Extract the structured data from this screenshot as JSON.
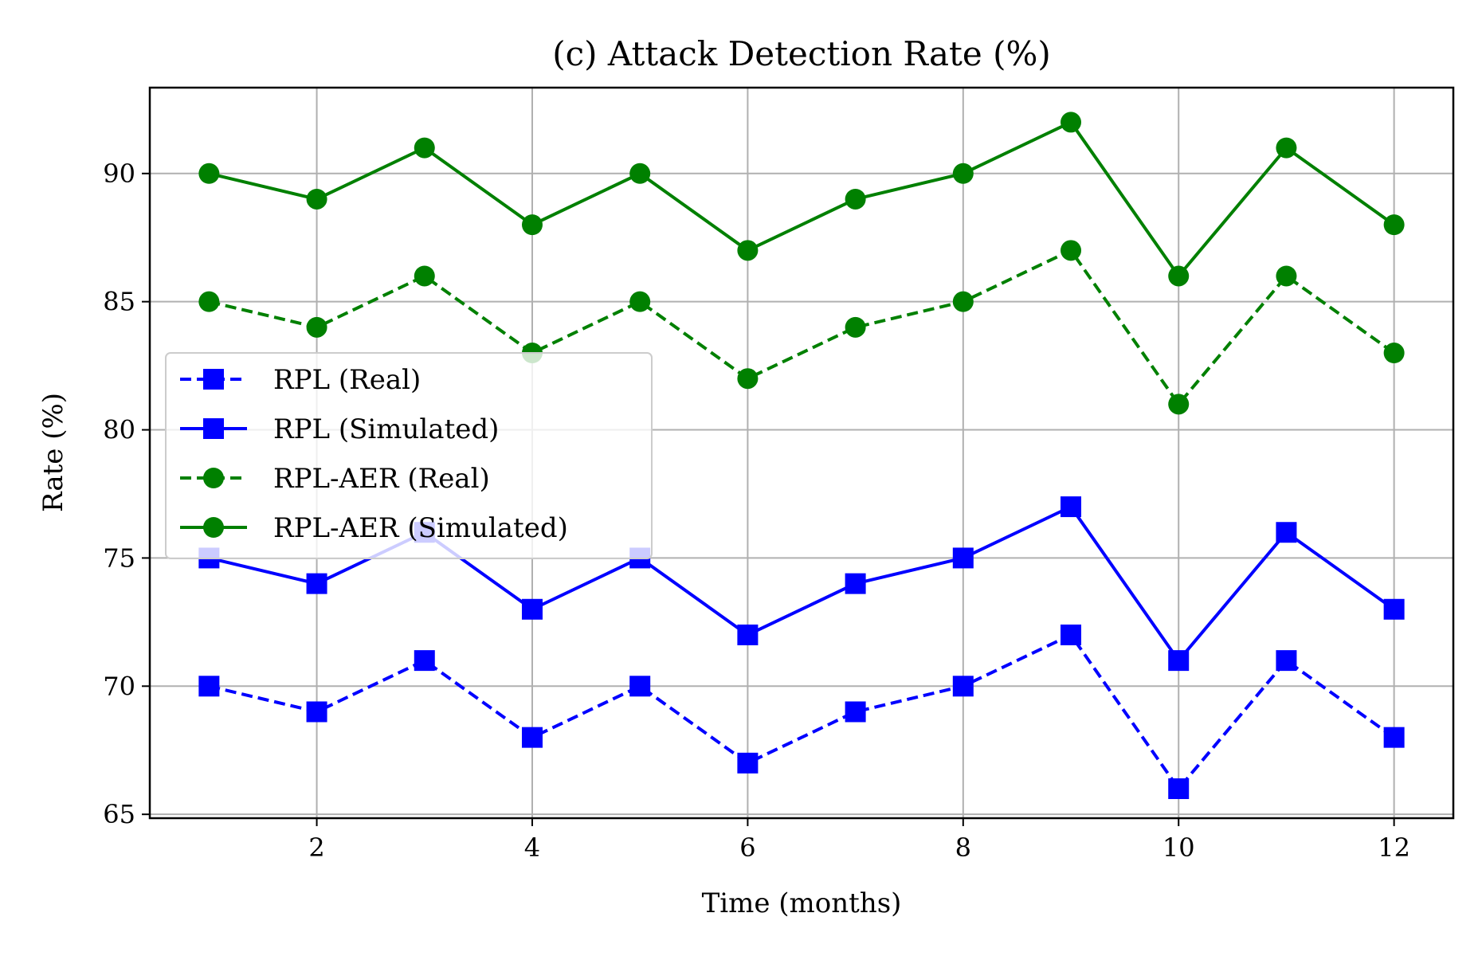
{
  "chart_data": {
    "type": "line",
    "title": "(c) Attack Detection Rate (%)",
    "xlabel": "Time (months)",
    "ylabel": "Rate (%)",
    "x": [
      1,
      2,
      3,
      4,
      5,
      6,
      7,
      8,
      9,
      10,
      11,
      12
    ],
    "xlim": [
      0.45,
      12.55
    ],
    "ylim": [
      64.85,
      93.35
    ],
    "xticks": [
      2,
      4,
      6,
      8,
      10,
      12
    ],
    "yticks": [
      65,
      70,
      75,
      80,
      85,
      90
    ],
    "grid": true,
    "legend_position": "center-left",
    "series": [
      {
        "name": "RPL (Real)",
        "color": "#0000ff",
        "linestyle": "dashed",
        "marker": "square",
        "values": [
          70,
          69,
          71,
          68,
          70,
          67,
          69,
          70,
          72,
          66,
          71,
          68
        ]
      },
      {
        "name": "RPL (Simulated)",
        "color": "#0000ff",
        "linestyle": "solid",
        "marker": "square",
        "values": [
          75,
          74,
          76,
          73,
          75,
          72,
          74,
          75,
          77,
          71,
          76,
          73
        ]
      },
      {
        "name": "RPL-AER (Real)",
        "color": "#008000",
        "linestyle": "dashed",
        "marker": "circle",
        "values": [
          85,
          84,
          86,
          83,
          85,
          82,
          84,
          85,
          87,
          81,
          86,
          83
        ]
      },
      {
        "name": "RPL-AER (Simulated)",
        "color": "#008000",
        "linestyle": "solid",
        "marker": "circle",
        "values": [
          90,
          89,
          91,
          88,
          90,
          87,
          89,
          90,
          92,
          86,
          91,
          88
        ]
      }
    ]
  }
}
